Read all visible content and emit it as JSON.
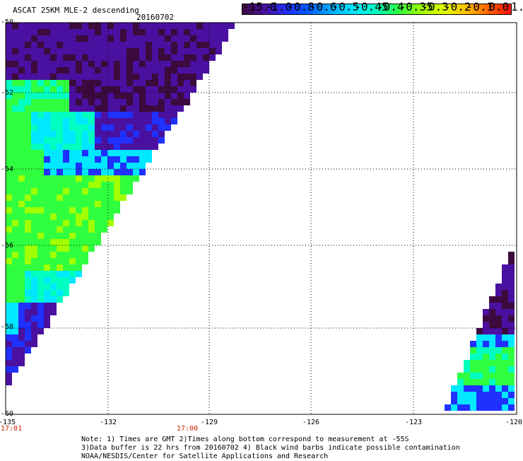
{
  "header": {
    "title": "ASCAT 25KM MLE-2 descending",
    "date": "20160702"
  },
  "colorbar": {
    "labels": [
      "-15.0",
      "-1.0",
      "-0.8",
      "-0.6",
      "-0.5",
      "-0.45",
      "-0.4",
      "-0.35",
      "-0.3",
      "-0.2",
      "-0.1",
      "0.0",
      "1.0"
    ],
    "colors": [
      "#3c0a3c",
      "#4a10a0",
      "#2030ff",
      "#0060ff",
      "#00b0ff",
      "#00e8ff",
      "#00ffc0",
      "#30ff40",
      "#a0ff00",
      "#e0ff00",
      "#ffc000",
      "#ff6000",
      "#ff1010"
    ]
  },
  "map": {
    "lat_labels": [
      "-50",
      "-52",
      "-54",
      "-56",
      "-58",
      "-60"
    ],
    "lon_labels": [
      "-135",
      "-132",
      "-129",
      "-126",
      "-123",
      "-120"
    ],
    "time_labels": [
      "17:01",
      "17:00"
    ],
    "cell_colors": {
      "dark": "#3c0a3c",
      "indigo": "#4a10a0",
      "blue": "#2030ff",
      "cyan": "#00e8ff",
      "aqua": "#00ffc0",
      "green": "#30ff40",
      "lime": "#a0ff00"
    }
  },
  "notes": [
    "Note: 1) Times are GMT 2)Times along bottom correspond to measurement at -55S",
    "      3)Data buffer is 22 hrs from 20160702 4) Black wind barbs indicate possible contamination",
    "                                    NOAA/NESDIS/Center for Satellite Applications and Research"
  ]
}
